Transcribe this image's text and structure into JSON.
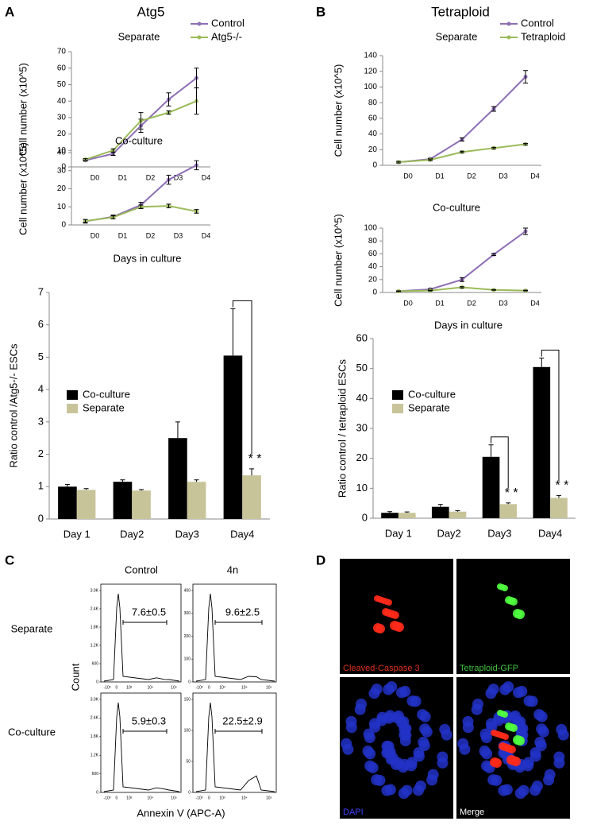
{
  "chart_data": [
    {
      "type": "line",
      "panel": "A",
      "heading": "Atg5",
      "title": "Separate",
      "ylabel": "Cell number (x10^5)",
      "categories": [
        "D0",
        "D1",
        "D2",
        "D3",
        "D4"
      ],
      "ylim": [
        0,
        70
      ],
      "yticks": [
        0,
        10,
        20,
        30,
        40,
        50,
        60,
        70
      ],
      "legend": "upper right",
      "series": [
        {
          "name": "Control",
          "color": "#8e6fb5",
          "values": [
            4,
            8,
            25,
            41,
            54
          ],
          "errors": [
            0.5,
            1,
            4,
            4,
            6
          ]
        },
        {
          "name": "Atg5-/-",
          "color": "#9bbb59",
          "values": [
            4.5,
            10,
            28,
            33,
            40
          ],
          "errors": [
            0.5,
            1,
            5,
            1,
            8
          ]
        }
      ]
    },
    {
      "type": "line",
      "title": "Co-culture",
      "ylabel": "Cell number (x10^5)",
      "xlabel": "Days in culture",
      "categories": [
        "D0",
        "D1",
        "D2",
        "D3",
        "D4"
      ],
      "ylim": [
        0,
        40
      ],
      "yticks": [
        0,
        10,
        20,
        30,
        40
      ],
      "series": [
        {
          "color": "#8e6fb5",
          "values": [
            2,
            4.5,
            11,
            25,
            33
          ],
          "errors": [
            1,
            1,
            1.5,
            2.5,
            2.5
          ]
        },
        {
          "color": "#9bbb59",
          "values": [
            2.2,
            4.2,
            10,
            10.5,
            7.5
          ],
          "errors": [
            0.8,
            0.8,
            1,
            1,
            1
          ]
        }
      ]
    },
    {
      "type": "bar",
      "ylabel": "Ratio control /Atg5-/- ESCs",
      "categories": [
        "Day 1",
        "Day2",
        "Day3",
        "Day4"
      ],
      "ylim": [
        0,
        7
      ],
      "yticks": [
        0,
        1,
        2,
        3,
        4,
        5,
        6,
        7
      ],
      "legend": "upper left",
      "annotations": [
        "* *"
      ],
      "series": [
        {
          "name": "Co-culture",
          "color": "#000000",
          "values": [
            1.0,
            1.15,
            2.5,
            5.05
          ],
          "errors": [
            0.07,
            0.06,
            0.5,
            1.45
          ]
        },
        {
          "name": "Separate",
          "color": "#c8c49a",
          "values": [
            0.9,
            0.88,
            1.15,
            1.35
          ],
          "errors": [
            0.04,
            0.03,
            0.06,
            0.2
          ]
        }
      ]
    },
    {
      "type": "line",
      "panel": "B",
      "heading": "Tetraploid",
      "title": "Separate",
      "ylabel": "Cell number (x10^5)",
      "categories": [
        "D0",
        "D1",
        "D2",
        "D3",
        "D4"
      ],
      "ylim": [
        0,
        140
      ],
      "yticks": [
        0,
        20,
        40,
        60,
        80,
        100,
        120,
        140
      ],
      "legend": "upper right",
      "series": [
        {
          "name": "Control",
          "color": "#8e6fb5",
          "values": [
            4,
            8,
            33,
            72,
            113
          ],
          "errors": [
            1,
            1,
            2,
            3,
            8
          ]
        },
        {
          "name": "Tetraploid",
          "color": "#9bbb59",
          "values": [
            4,
            7,
            17,
            22,
            27
          ],
          "errors": [
            1,
            1,
            1,
            1,
            1
          ]
        }
      ]
    },
    {
      "type": "line",
      "title": "Co-culture",
      "ylabel": "Cell number (x10^5)",
      "xlabel": "Days in culture",
      "categories": [
        "D0",
        "D1",
        "D2",
        "D3",
        "D4"
      ],
      "ylim": [
        0,
        100
      ],
      "yticks": [
        0,
        20,
        40,
        60,
        80,
        100
      ],
      "series": [
        {
          "color": "#8e6fb5",
          "values": [
            2,
            5,
            20,
            59,
            95
          ],
          "errors": [
            0.5,
            1,
            3,
            1.5,
            5
          ]
        },
        {
          "color": "#9bbb59",
          "values": [
            2,
            3,
            8,
            4,
            3
          ],
          "errors": [
            0.5,
            0.5,
            1,
            0.5,
            0.5
          ]
        }
      ]
    },
    {
      "type": "bar",
      "ylabel": "Ratio control / tetraploid ESCs",
      "categories": [
        "Day 1",
        "Day2",
        "Day3",
        "Day4"
      ],
      "ylim": [
        0,
        60
      ],
      "yticks": [
        0,
        10,
        20,
        30,
        40,
        50,
        60
      ],
      "legend": "upper left",
      "annotations": [
        "* *",
        "* *"
      ],
      "series": [
        {
          "name": "Co-culture",
          "color": "#000000",
          "values": [
            1.8,
            3.8,
            20.5,
            50.5
          ],
          "errors": [
            0.4,
            0.8,
            4,
            3
          ]
        },
        {
          "name": "Separate",
          "color": "#c8c49a",
          "values": [
            1.8,
            2.2,
            4.7,
            6.8
          ],
          "errors": [
            0.3,
            0.3,
            0.4,
            0.8
          ]
        }
      ]
    }
  ],
  "flow": {
    "panel": "C",
    "columns": [
      "Control",
      "4n"
    ],
    "rows": [
      "Separate",
      "Co-culture"
    ],
    "ylabel": "Count",
    "xlabel": "Annexin V (APC-A)",
    "xticks": [
      "-10³",
      "0",
      "10³",
      "10⁴",
      "10⁵"
    ],
    "plots": [
      {
        "yticks": [
          "3.0K",
          "2.4K",
          "1.8K",
          "1.2K",
          "600",
          "0"
        ],
        "gate": "7.6±0.5"
      },
      {
        "yticks": [
          "400",
          "300",
          "200",
          "100",
          "0"
        ],
        "gate": "9.6±2.5"
      },
      {
        "yticks": [
          "3.0K",
          "2.4K",
          "1.8K",
          "1.2K",
          "600",
          "0"
        ],
        "gate": "5.9±0.3"
      },
      {
        "yticks": [
          "150",
          "100",
          "50",
          "0"
        ],
        "gate": "22.5±2.9"
      }
    ]
  },
  "images": {
    "panel": "D",
    "captions": [
      "Cleaved-Caspase 3",
      "Tetraploid-GFP",
      "DAPI",
      "Merge"
    ]
  }
}
